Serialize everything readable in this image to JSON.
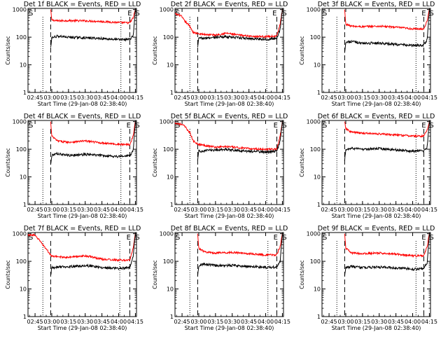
{
  "start_time_label": "Start Time (29-Jan-08 02:38:40)",
  "ylabel": "Counts/sec",
  "x_ticks": [
    "02:45",
    "03:00",
    "03:15",
    "03:30",
    "03:45",
    "04:00",
    "04:15"
  ],
  "y_ticks": [
    "1",
    "10",
    "100",
    "1000"
  ],
  "colors": {
    "events": "#000000",
    "lld": "#ff0000"
  },
  "chart_data": [
    {
      "type": "line",
      "title": "Det 1f BLACK = Events, RED = LLD",
      "xlabel": "Start Time (29-Jan-08 02:38:40)",
      "ylabel": "Counts/sec",
      "xlim": [
        "02:38:40",
        "04:16:00"
      ],
      "ylim": [
        1,
        1100
      ],
      "yscale": "log",
      "x_ticks": [
        "02:45",
        "03:00",
        "03:15",
        "03:30",
        "03:45",
        "04:00",
        "04:15"
      ],
      "y_ticks": [
        1,
        10,
        100,
        1000
      ],
      "markers": {
        "S_start": "02:38:40",
        "S_end": "04:15:00",
        "E": "04:08:00",
        "dotted": [
          "02:52:00",
          "04:02:00"
        ],
        "dashed": [
          "02:59:00",
          "04:10:00"
        ]
      },
      "series": [
        {
          "color": "#ff0000",
          "x": [
            "02:59",
            "03:00",
            "03:05",
            "03:15",
            "03:30",
            "03:45",
            "04:00",
            "04:10",
            "04:13",
            "04:15"
          ],
          "values": [
            1000,
            420,
            390,
            400,
            390,
            370,
            340,
            330,
            500,
            1000
          ]
        },
        {
          "color": "#000000",
          "x": [
            "02:59",
            "03:00",
            "03:05",
            "03:15",
            "03:30",
            "03:45",
            "04:00",
            "04:10",
            "04:13",
            "04:15"
          ],
          "values": [
            40,
            95,
            110,
            100,
            95,
            90,
            82,
            85,
            110,
            1000
          ]
        }
      ]
    },
    {
      "type": "line",
      "title": "Det 2f BLACK = Events, RED = LLD",
      "xlabel": "Start Time (29-Jan-08 02:38:40)",
      "ylabel": "Counts/sec",
      "xlim": [
        "02:38:40",
        "04:16:00"
      ],
      "ylim": [
        1,
        1100
      ],
      "yscale": "log",
      "x_ticks": [
        "02:45",
        "03:00",
        "03:15",
        "03:30",
        "03:45",
        "04:00",
        "04:15"
      ],
      "y_ticks": [
        1,
        10,
        100,
        1000
      ],
      "markers": {
        "S_start": "02:38:40",
        "S_end": "04:15:00",
        "E": "04:06:00",
        "dotted": [
          "02:52:00",
          "04:01:00"
        ],
        "dashed": [
          "02:59:00",
          "04:10:00"
        ]
      },
      "series": [
        {
          "color": "#ff0000",
          "x": [
            "02:38:40",
            "02:44",
            "02:47",
            "02:52",
            "02:55",
            "03:00",
            "03:15",
            "03:25",
            "03:35",
            "03:45",
            "04:00",
            "04:10",
            "04:13",
            "04:15"
          ],
          "values": [
            700,
            600,
            400,
            250,
            150,
            130,
            120,
            140,
            120,
            110,
            105,
            110,
            300,
            1000
          ]
        },
        {
          "color": "#000000",
          "x": [
            "02:59",
            "03:00",
            "03:15",
            "03:25",
            "03:35",
            "03:45",
            "04:00",
            "04:10",
            "04:13",
            "04:15"
          ],
          "values": [
            40,
            90,
            100,
            105,
            95,
            90,
            85,
            90,
            200,
            1000
          ]
        }
      ]
    },
    {
      "type": "line",
      "title": "Det 3f BLACK = Events, RED = LLD",
      "xlabel": "Start Time (29-Jan-08 02:38:40)",
      "ylabel": "Counts/sec",
      "xlim": [
        "02:38:40",
        "04:16:00"
      ],
      "ylim": [
        1,
        1100
      ],
      "yscale": "log",
      "x_ticks": [
        "02:45",
        "03:00",
        "03:15",
        "03:30",
        "03:45",
        "04:00",
        "04:15"
      ],
      "y_ticks": [
        1,
        10,
        100,
        1000
      ],
      "markers": {
        "S_start": "02:38:40",
        "S_end": "04:15:00",
        "E": "04:08:00",
        "dotted": [
          "02:52:00",
          "04:03:00"
        ],
        "dashed": [
          "02:59:00",
          "04:10:00"
        ]
      },
      "series": [
        {
          "color": "#ff0000",
          "x": [
            "02:59",
            "03:00",
            "03:05",
            "03:15",
            "03:30",
            "03:45",
            "04:00",
            "04:10",
            "04:13",
            "04:15"
          ],
          "values": [
            1000,
            300,
            250,
            240,
            250,
            230,
            200,
            200,
            400,
            1000
          ]
        },
        {
          "color": "#000000",
          "x": [
            "02:59",
            "03:00",
            "03:05",
            "03:15",
            "03:30",
            "03:45",
            "04:00",
            "04:10",
            "04:13",
            "04:15"
          ],
          "values": [
            30,
            65,
            70,
            60,
            62,
            55,
            50,
            52,
            80,
            1000
          ]
        }
      ]
    },
    {
      "type": "line",
      "title": "Det 4f BLACK = Events, RED = LLD",
      "xlabel": "Start Time (29-Jan-08 02:38:40)",
      "ylabel": "Counts/sec",
      "xlim": [
        "02:38:40",
        "04:16:00"
      ],
      "ylim": [
        1,
        1100
      ],
      "yscale": "log",
      "x_ticks": [
        "02:45",
        "03:00",
        "03:15",
        "03:30",
        "03:45",
        "04:00",
        "04:15"
      ],
      "y_ticks": [
        1,
        10,
        100,
        1000
      ],
      "markers": {
        "S_start": "02:38:40",
        "S_end": "04:15:00",
        "E": "04:07:00",
        "dotted": [
          "02:52:00",
          "04:02:00"
        ],
        "dashed": [
          "02:59:00",
          "04:10:00"
        ]
      },
      "series": [
        {
          "color": "#ff0000",
          "x": [
            "02:59",
            "03:00",
            "03:05",
            "03:15",
            "03:30",
            "03:45",
            "04:00",
            "04:10",
            "04:13",
            "04:15"
          ],
          "values": [
            1000,
            300,
            200,
            180,
            200,
            170,
            150,
            150,
            300,
            1000
          ]
        },
        {
          "color": "#000000",
          "x": [
            "02:59",
            "03:00",
            "03:05",
            "03:15",
            "03:30",
            "03:45",
            "04:00",
            "04:10",
            "04:13",
            "04:15"
          ],
          "values": [
            30,
            60,
            70,
            60,
            65,
            60,
            55,
            58,
            90,
            1000
          ]
        }
      ]
    },
    {
      "type": "line",
      "title": "Det 5f BLACK = Events, RED = LLD",
      "xlabel": "Start Time (29-Jan-08 02:38:40)",
      "ylabel": "Counts/sec",
      "xlim": [
        "02:38:40",
        "04:16:00"
      ],
      "ylim": [
        1,
        1100
      ],
      "yscale": "log",
      "x_ticks": [
        "02:45",
        "03:00",
        "03:15",
        "03:30",
        "03:45",
        "04:00",
        "04:15"
      ],
      "y_ticks": [
        1,
        10,
        100,
        1000
      ],
      "markers": {
        "S_start": "02:38:40",
        "S_end": "04:15:00",
        "E": "04:07:00",
        "dotted": [
          "02:52:00",
          "04:01:00"
        ],
        "dashed": [
          "02:59:00",
          "04:10:00"
        ]
      },
      "series": [
        {
          "color": "#ff0000",
          "x": [
            "02:38:40",
            "02:44",
            "02:47",
            "02:52",
            "02:55",
            "03:00",
            "03:15",
            "03:25",
            "03:35",
            "03:45",
            "04:00",
            "04:10",
            "04:13",
            "04:15"
          ],
          "values": [
            900,
            800,
            700,
            400,
            200,
            150,
            120,
            125,
            115,
            105,
            100,
            100,
            300,
            1000
          ]
        },
        {
          "color": "#000000",
          "x": [
            "02:59",
            "03:00",
            "03:15",
            "03:25",
            "03:35",
            "03:45",
            "04:00",
            "04:10",
            "04:13",
            "04:15"
          ],
          "values": [
            40,
            85,
            95,
            100,
            90,
            85,
            80,
            85,
            200,
            1000
          ]
        }
      ]
    },
    {
      "type": "line",
      "title": "Det 6f BLACK = Events, RED = LLD",
      "xlabel": "Start Time (29-Jan-08 02:38:40)",
      "ylabel": "Counts/sec",
      "xlim": [
        "02:38:40",
        "04:16:00"
      ],
      "ylim": [
        1,
        1100
      ],
      "yscale": "log",
      "x_ticks": [
        "02:45",
        "03:00",
        "03:15",
        "03:30",
        "03:45",
        "04:00",
        "04:15"
      ],
      "y_ticks": [
        1,
        10,
        100,
        1000
      ],
      "markers": {
        "S_start": "02:38:40",
        "S_end": "04:15:00",
        "E": "04:08:00",
        "dotted": [
          "02:52:00",
          "04:03:00"
        ],
        "dashed": [
          "02:59:00",
          "04:10:00"
        ]
      },
      "series": [
        {
          "color": "#ff0000",
          "x": [
            "02:59",
            "03:00",
            "03:05",
            "03:15",
            "03:30",
            "03:45",
            "04:00",
            "04:10",
            "04:13",
            "04:15"
          ],
          "values": [
            1000,
            550,
            420,
            380,
            360,
            330,
            300,
            300,
            500,
            1000
          ]
        },
        {
          "color": "#000000",
          "x": [
            "02:59",
            "03:00",
            "03:05",
            "03:15",
            "03:30",
            "03:45",
            "04:00",
            "04:10",
            "04:13",
            "04:15"
          ],
          "values": [
            40,
            95,
            110,
            100,
            105,
            95,
            85,
            88,
            120,
            1000
          ]
        }
      ]
    },
    {
      "type": "line",
      "title": "Det 7f BLACK = Events, RED = LLD",
      "xlabel": "Start Time (29-Jan-08 02:38:40)",
      "ylabel": "Counts/sec",
      "xlim": [
        "02:38:40",
        "04:16:00"
      ],
      "ylim": [
        1,
        1100
      ],
      "yscale": "log",
      "x_ticks": [
        "02:45",
        "03:00",
        "03:15",
        "03:30",
        "03:45",
        "04:00",
        "04:15"
      ],
      "y_ticks": [
        1,
        10,
        100,
        1000
      ],
      "markers": {
        "S_start": "02:38:40",
        "S_end": "04:15:00",
        "E": "04:07:00",
        "dotted": [
          "02:52:00",
          "04:01:00"
        ],
        "dashed": [
          "02:59:00",
          "04:10:00"
        ]
      },
      "series": [
        {
          "color": "#ff0000",
          "x": [
            "02:38:40",
            "02:44",
            "02:48",
            "02:52",
            "02:56",
            "03:00",
            "03:15",
            "03:30",
            "03:45",
            "04:00",
            "04:10",
            "04:13",
            "04:15"
          ],
          "values": [
            900,
            900,
            650,
            400,
            250,
            150,
            140,
            160,
            120,
            110,
            110,
            300,
            1000
          ]
        },
        {
          "color": "#000000",
          "x": [
            "02:59",
            "03:00",
            "03:15",
            "03:30",
            "03:45",
            "04:00",
            "04:10",
            "04:13",
            "04:15"
          ],
          "values": [
            30,
            60,
            65,
            70,
            60,
            55,
            60,
            150,
            1000
          ]
        }
      ]
    },
    {
      "type": "line",
      "title": "Det 8f BLACK = Events, RED = LLD",
      "xlabel": "Start Time (29-Jan-08 02:38:40)",
      "ylabel": "Counts/sec",
      "xlim": [
        "02:38:40",
        "04:16:00"
      ],
      "ylim": [
        1,
        1100
      ],
      "yscale": "log",
      "x_ticks": [
        "02:45",
        "03:00",
        "03:15",
        "03:30",
        "03:45",
        "04:00",
        "04:15"
      ],
      "y_ticks": [
        1,
        10,
        100,
        1000
      ],
      "markers": {
        "S_start": "02:38:40",
        "S_end": "04:15:00",
        "E": "04:07:00",
        "dotted": [
          "02:52:00",
          "04:02:00"
        ],
        "dashed": [
          "02:59:00",
          "04:10:00"
        ]
      },
      "series": [
        {
          "color": "#ff0000",
          "x": [
            "02:59",
            "03:00",
            "03:05",
            "03:15",
            "03:30",
            "03:45",
            "04:00",
            "04:10",
            "04:13",
            "04:15"
          ],
          "values": [
            1000,
            300,
            220,
            200,
            210,
            190,
            170,
            170,
            350,
            1000
          ]
        },
        {
          "color": "#000000",
          "x": [
            "02:59",
            "03:00",
            "03:05",
            "03:15",
            "03:30",
            "03:45",
            "04:00",
            "04:10",
            "04:13",
            "04:15"
          ],
          "values": [
            30,
            70,
            80,
            70,
            72,
            65,
            60,
            62,
            100,
            1000
          ]
        }
      ]
    },
    {
      "type": "line",
      "title": "Det 9f BLACK = Events, RED = LLD",
      "xlabel": "Start Time (29-Jan-08 02:38:40)",
      "ylabel": "Counts/sec",
      "xlim": [
        "02:38:40",
        "04:16:00"
      ],
      "ylim": [
        1,
        1100
      ],
      "yscale": "log",
      "x_ticks": [
        "02:45",
        "03:00",
        "03:15",
        "03:30",
        "03:45",
        "04:00",
        "04:15"
      ],
      "y_ticks": [
        1,
        10,
        100,
        1000
      ],
      "markers": {
        "S_start": "02:38:40",
        "S_end": "04:15:00",
        "E": "04:08:00",
        "dotted": [
          "02:52:00",
          "04:03:00"
        ],
        "dashed": [
          "02:59:00",
          "04:10:00"
        ]
      },
      "series": [
        {
          "color": "#ff0000",
          "x": [
            "02:59",
            "03:00",
            "03:05",
            "03:15",
            "03:30",
            "03:45",
            "04:00",
            "04:10",
            "04:13",
            "04:15"
          ],
          "values": [
            1000,
            300,
            200,
            190,
            200,
            185,
            160,
            160,
            350,
            1000
          ]
        },
        {
          "color": "#000000",
          "x": [
            "02:59",
            "03:00",
            "03:05",
            "03:15",
            "03:30",
            "03:45",
            "04:00",
            "04:10",
            "04:13",
            "04:15"
          ],
          "values": [
            30,
            60,
            65,
            60,
            62,
            58,
            52,
            55,
            90,
            1000
          ]
        }
      ]
    }
  ]
}
